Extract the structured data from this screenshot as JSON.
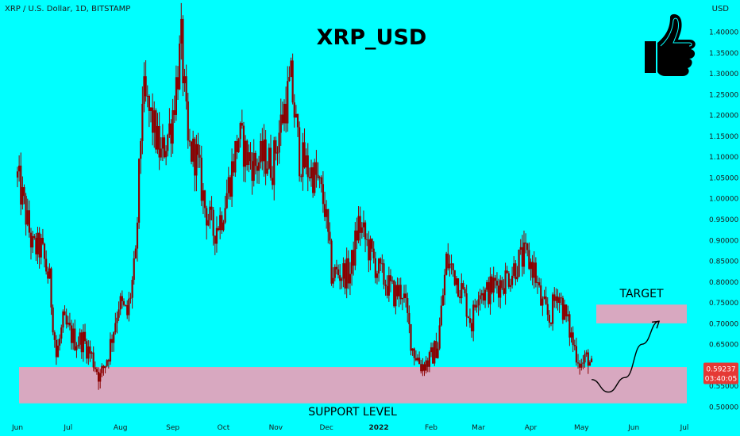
{
  "header": {
    "symbol_info": "XRP / U.S. Dollar, 1D, BITSTAMP",
    "currency": "USD"
  },
  "annotations": {
    "title": "XRP_USD",
    "target_label": "TARGET",
    "support_label": "SUPPORT LEVEL"
  },
  "price_tag": {
    "price": "0.59237",
    "countdown": "03:40:05"
  },
  "colors": {
    "background": "#00ffff",
    "candle": "#8b0000",
    "zone": "#d8a8c0",
    "price_tag": "#e53935"
  },
  "icon": "thumbs-up-icon",
  "chart_data": {
    "type": "candlestick",
    "title": "XRP_USD",
    "xlabel": "",
    "ylabel": "",
    "ylim": [
      0.49,
      1.43
    ],
    "y_ticks": [
      "1.40000",
      "1.35000",
      "1.30000",
      "1.25000",
      "1.20000",
      "1.15000",
      "1.10000",
      "1.05000",
      "1.00000",
      "0.95000",
      "0.90000",
      "0.85000",
      "0.80000",
      "0.75000",
      "0.70000",
      "0.65000",
      "0.60000",
      "0.55000",
      "0.50000"
    ],
    "x_ticks": [
      "Jun",
      "Jul",
      "Aug",
      "Sep",
      "Oct",
      "Nov",
      "Dec",
      "2022",
      "Feb",
      "Mar",
      "Apr",
      "May",
      "Jun",
      "Jul"
    ],
    "close_path": [
      {
        "date": "2021-06-01",
        "value": 1.05
      },
      {
        "date": "2021-06-05",
        "value": 0.98
      },
      {
        "date": "2021-06-10",
        "value": 0.88
      },
      {
        "date": "2021-06-15",
        "value": 0.88
      },
      {
        "date": "2021-06-20",
        "value": 0.8
      },
      {
        "date": "2021-06-24",
        "value": 0.62
      },
      {
        "date": "2021-06-28",
        "value": 0.7
      },
      {
        "date": "2021-07-05",
        "value": 0.66
      },
      {
        "date": "2021-07-10",
        "value": 0.66
      },
      {
        "date": "2021-07-15",
        "value": 0.62
      },
      {
        "date": "2021-07-20",
        "value": 0.57
      },
      {
        "date": "2021-07-25",
        "value": 0.63
      },
      {
        "date": "2021-07-31",
        "value": 0.75
      },
      {
        "date": "2021-08-05",
        "value": 0.72
      },
      {
        "date": "2021-08-10",
        "value": 0.85
      },
      {
        "date": "2021-08-14",
        "value": 1.25
      },
      {
        "date": "2021-08-20",
        "value": 1.18
      },
      {
        "date": "2021-08-25",
        "value": 1.1
      },
      {
        "date": "2021-08-31",
        "value": 1.18
      },
      {
        "date": "2021-09-06",
        "value": 1.37
      },
      {
        "date": "2021-09-10",
        "value": 1.12
      },
      {
        "date": "2021-09-15",
        "value": 1.1
      },
      {
        "date": "2021-09-20",
        "value": 0.98
      },
      {
        "date": "2021-09-25",
        "value": 0.92
      },
      {
        "date": "2021-09-30",
        "value": 0.96
      },
      {
        "date": "2021-10-05",
        "value": 1.05
      },
      {
        "date": "2021-10-10",
        "value": 1.15
      },
      {
        "date": "2021-10-15",
        "value": 1.1
      },
      {
        "date": "2021-10-20",
        "value": 1.08
      },
      {
        "date": "2021-10-25",
        "value": 1.1
      },
      {
        "date": "2021-10-30",
        "value": 1.08
      },
      {
        "date": "2021-11-05",
        "value": 1.2
      },
      {
        "date": "2021-11-10",
        "value": 1.28
      },
      {
        "date": "2021-11-15",
        "value": 1.1
      },
      {
        "date": "2021-11-20",
        "value": 1.07
      },
      {
        "date": "2021-11-25",
        "value": 1.05
      },
      {
        "date": "2021-11-30",
        "value": 0.98
      },
      {
        "date": "2021-12-04",
        "value": 0.82
      },
      {
        "date": "2021-12-10",
        "value": 0.82
      },
      {
        "date": "2021-12-15",
        "value": 0.82
      },
      {
        "date": "2021-12-20",
        "value": 0.94
      },
      {
        "date": "2021-12-25",
        "value": 0.89
      },
      {
        "date": "2021-12-31",
        "value": 0.83
      },
      {
        "date": "2022-01-05",
        "value": 0.8
      },
      {
        "date": "2022-01-10",
        "value": 0.77
      },
      {
        "date": "2022-01-15",
        "value": 0.78
      },
      {
        "date": "2022-01-21",
        "value": 0.64
      },
      {
        "date": "2022-01-26",
        "value": 0.6
      },
      {
        "date": "2022-01-31",
        "value": 0.61
      },
      {
        "date": "2022-02-05",
        "value": 0.65
      },
      {
        "date": "2022-02-10",
        "value": 0.85
      },
      {
        "date": "2022-02-15",
        "value": 0.82
      },
      {
        "date": "2022-02-20",
        "value": 0.77
      },
      {
        "date": "2022-02-25",
        "value": 0.7
      },
      {
        "date": "2022-03-01",
        "value": 0.79
      },
      {
        "date": "2022-03-05",
        "value": 0.77
      },
      {
        "date": "2022-03-10",
        "value": 0.79
      },
      {
        "date": "2022-03-15",
        "value": 0.8
      },
      {
        "date": "2022-03-20",
        "value": 0.82
      },
      {
        "date": "2022-03-25",
        "value": 0.85
      },
      {
        "date": "2022-03-29",
        "value": 0.86
      },
      {
        "date": "2022-04-03",
        "value": 0.83
      },
      {
        "date": "2022-04-07",
        "value": 0.75
      },
      {
        "date": "2022-04-12",
        "value": 0.71
      },
      {
        "date": "2022-04-17",
        "value": 0.78
      },
      {
        "date": "2022-04-22",
        "value": 0.71
      },
      {
        "date": "2022-04-27",
        "value": 0.64
      },
      {
        "date": "2022-05-01",
        "value": 0.6
      },
      {
        "date": "2022-05-05",
        "value": 0.62
      },
      {
        "date": "2022-05-07",
        "value": 0.59237
      }
    ],
    "zones": [
      {
        "label": "SUPPORT LEVEL",
        "y": [
          0.508,
          0.595
        ]
      },
      {
        "label": "TARGET",
        "y": [
          0.7,
          0.745
        ]
      }
    ],
    "last_price": 0.59237,
    "projection": [
      {
        "date": "2022-05-07",
        "value": 0.565
      },
      {
        "date": "2022-05-17",
        "value": 0.535
      },
      {
        "date": "2022-05-27",
        "value": 0.57
      },
      {
        "date": "2022-06-06",
        "value": 0.65
      },
      {
        "date": "2022-06-16",
        "value": 0.705
      }
    ]
  }
}
